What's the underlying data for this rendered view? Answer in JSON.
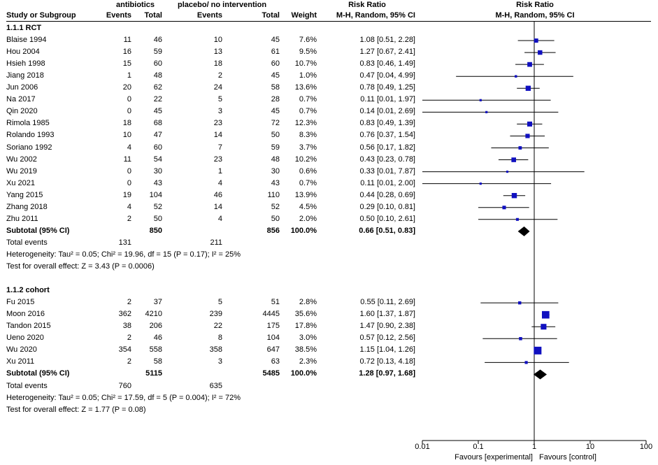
{
  "header": {
    "group1": "antibiotics",
    "group2": "placebo/ no intervention",
    "rr_top": "Risk Ratio",
    "rr_sub": "M-H, Random, 95% CI",
    "plot_top": "Risk Ratio",
    "plot_sub": "M-H, Random, 95% CI",
    "cols": {
      "study": "Study or Subgroup",
      "events1": "Events",
      "total1": "Total",
      "events2": "Events",
      "total2": "Total",
      "weight": "Weight"
    }
  },
  "subgroups": [
    {
      "title": "1.1.1 RCT",
      "studies": [
        {
          "name": "Blaise 1994",
          "e1": "11",
          "t1": "46",
          "e2": "10",
          "t2": "45",
          "w": "7.6%",
          "ci": "1.08 [0.51, 2.28]",
          "rr": 1.08,
          "lo": 0.51,
          "hi": 2.28,
          "wt": 7.6
        },
        {
          "name": "Hou 2004",
          "e1": "16",
          "t1": "59",
          "e2": "13",
          "t2": "61",
          "w": "9.5%",
          "ci": "1.27 [0.67, 2.41]",
          "rr": 1.27,
          "lo": 0.67,
          "hi": 2.41,
          "wt": 9.5
        },
        {
          "name": "Hsieh 1998",
          "e1": "15",
          "t1": "60",
          "e2": "18",
          "t2": "60",
          "w": "10.7%",
          "ci": "0.83 [0.46, 1.49]",
          "rr": 0.83,
          "lo": 0.46,
          "hi": 1.49,
          "wt": 10.7
        },
        {
          "name": "Jiang 2018",
          "e1": "1",
          "t1": "48",
          "e2": "2",
          "t2": "45",
          "w": "1.0%",
          "ci": "0.47 [0.04, 4.99]",
          "rr": 0.47,
          "lo": 0.04,
          "hi": 4.99,
          "wt": 1.0
        },
        {
          "name": "Jun 2006",
          "e1": "20",
          "t1": "62",
          "e2": "24",
          "t2": "58",
          "w": "13.6%",
          "ci": "0.78 [0.49, 1.25]",
          "rr": 0.78,
          "lo": 0.49,
          "hi": 1.25,
          "wt": 13.6
        },
        {
          "name": "Na 2017",
          "e1": "0",
          "t1": "22",
          "e2": "5",
          "t2": "28",
          "w": "0.7%",
          "ci": "0.11 [0.01, 1.97]",
          "rr": 0.11,
          "lo": 0.01,
          "hi": 1.97,
          "wt": 0.7
        },
        {
          "name": "Qin 2020",
          "e1": "0",
          "t1": "45",
          "e2": "3",
          "t2": "45",
          "w": "0.7%",
          "ci": "0.14 [0.01, 2.69]",
          "rr": 0.14,
          "lo": 0.01,
          "hi": 2.69,
          "wt": 0.7
        },
        {
          "name": "Rimola 1985",
          "e1": "18",
          "t1": "68",
          "e2": "23",
          "t2": "72",
          "w": "12.3%",
          "ci": "0.83 [0.49, 1.39]",
          "rr": 0.83,
          "lo": 0.49,
          "hi": 1.39,
          "wt": 12.3
        },
        {
          "name": "Rolando 1993",
          "e1": "10",
          "t1": "47",
          "e2": "14",
          "t2": "50",
          "w": "8.3%",
          "ci": "0.76 [0.37, 1.54]",
          "rr": 0.76,
          "lo": 0.37,
          "hi": 1.54,
          "wt": 8.3
        },
        {
          "name": "Soriano 1992",
          "e1": "4",
          "t1": "60",
          "e2": "7",
          "t2": "59",
          "w": "3.7%",
          "ci": "0.56 [0.17, 1.82]",
          "rr": 0.56,
          "lo": 0.17,
          "hi": 1.82,
          "wt": 3.7
        },
        {
          "name": "Wu 2002",
          "e1": "11",
          "t1": "54",
          "e2": "23",
          "t2": "48",
          "w": "10.2%",
          "ci": "0.43 [0.23, 0.78]",
          "rr": 0.43,
          "lo": 0.23,
          "hi": 0.78,
          "wt": 10.2
        },
        {
          "name": "Wu 2019",
          "e1": "0",
          "t1": "30",
          "e2": "1",
          "t2": "30",
          "w": "0.6%",
          "ci": "0.33 [0.01, 7.87]",
          "rr": 0.33,
          "lo": 0.01,
          "hi": 7.87,
          "wt": 0.6
        },
        {
          "name": "Xu 2021",
          "e1": "0",
          "t1": "43",
          "e2": "4",
          "t2": "43",
          "w": "0.7%",
          "ci": "0.11 [0.01, 2.00]",
          "rr": 0.11,
          "lo": 0.01,
          "hi": 2.0,
          "wt": 0.7
        },
        {
          "name": "Yang 2015",
          "e1": "19",
          "t1": "104",
          "e2": "46",
          "t2": "110",
          "w": "13.9%",
          "ci": "0.44 [0.28, 0.69]",
          "rr": 0.44,
          "lo": 0.28,
          "hi": 0.69,
          "wt": 13.9
        },
        {
          "name": "Zhang 2018",
          "e1": "4",
          "t1": "52",
          "e2": "14",
          "t2": "52",
          "w": "4.5%",
          "ci": "0.29 [0.10, 0.81]",
          "rr": 0.29,
          "lo": 0.1,
          "hi": 0.81,
          "wt": 4.5
        },
        {
          "name": "Zhu 2011",
          "e1": "2",
          "t1": "50",
          "e2": "4",
          "t2": "50",
          "w": "2.0%",
          "ci": "0.50 [0.10, 2.61]",
          "rr": 0.5,
          "lo": 0.1,
          "hi": 2.61,
          "wt": 2.0
        }
      ],
      "subtotal": {
        "label": "Subtotal (95% CI)",
        "t1": "850",
        "t2": "856",
        "w": "100.0%",
        "ci": "0.66 [0.51, 0.83]",
        "rr": 0.66,
        "lo": 0.51,
        "hi": 0.83
      },
      "total_events": {
        "label": "Total events",
        "e1": "131",
        "e2": "211"
      },
      "heterogeneity": "Heterogeneity: Tau² = 0.05; Chi² = 19.96, df = 15 (P = 0.17); I² = 25%",
      "overall": "Test for overall effect: Z = 3.43 (P = 0.0006)"
    },
    {
      "title": "1.1.2 cohort",
      "studies": [
        {
          "name": "Fu 2015",
          "e1": "2",
          "t1": "37",
          "e2": "5",
          "t2": "51",
          "w": "2.8%",
          "ci": "0.55 [0.11, 2.69]",
          "rr": 0.55,
          "lo": 0.11,
          "hi": 2.69,
          "wt": 2.8
        },
        {
          "name": "Moon 2016",
          "e1": "362",
          "t1": "4210",
          "e2": "239",
          "t2": "4445",
          "w": "35.6%",
          "ci": "1.60 [1.37, 1.87]",
          "rr": 1.6,
          "lo": 1.37,
          "hi": 1.87,
          "wt": 35.6
        },
        {
          "name": "Tandon 2015",
          "e1": "38",
          "t1": "206",
          "e2": "22",
          "t2": "175",
          "w": "17.8%",
          "ci": "1.47 [0.90, 2.38]",
          "rr": 1.47,
          "lo": 0.9,
          "hi": 2.38,
          "wt": 17.8
        },
        {
          "name": "Ueno 2020",
          "e1": "2",
          "t1": "46",
          "e2": "8",
          "t2": "104",
          "w": "3.0%",
          "ci": "0.57 [0.12, 2.56]",
          "rr": 0.57,
          "lo": 0.12,
          "hi": 2.56,
          "wt": 3.0
        },
        {
          "name": "Wu 2020",
          "e1": "354",
          "t1": "558",
          "e2": "358",
          "t2": "647",
          "w": "38.5%",
          "ci": "1.15 [1.04, 1.26]",
          "rr": 1.15,
          "lo": 1.04,
          "hi": 1.26,
          "wt": 38.5
        },
        {
          "name": "Xu 2011",
          "e1": "2",
          "t1": "58",
          "e2": "3",
          "t2": "63",
          "w": "2.3%",
          "ci": "0.72 [0.13, 4.18]",
          "rr": 0.72,
          "lo": 0.13,
          "hi": 4.18,
          "wt": 2.3
        }
      ],
      "subtotal": {
        "label": "Subtotal (95% CI)",
        "t1": "5115",
        "t2": "5485",
        "w": "100.0%",
        "ci": "1.28 [0.97, 1.68]",
        "rr": 1.28,
        "lo": 0.97,
        "hi": 1.68
      },
      "total_events": {
        "label": "Total events",
        "e1": "760",
        "e2": "635"
      },
      "heterogeneity": "Heterogeneity: Tau² = 0.05; Chi² = 17.59, df = 5 (P = 0.004); I² = 72%",
      "overall": "Test for overall effect: Z = 1.77 (P = 0.08)"
    }
  ],
  "axis": {
    "ticks": [
      "0.01",
      "0.1",
      "1",
      "10",
      "100"
    ],
    "favours_left": "Favours [experimental]",
    "favours_right": "Favours [control]"
  },
  "colors": {
    "marker": "#1010c0",
    "line": "#000000",
    "diamond": "#000000"
  },
  "chart_data": {
    "type": "forest",
    "scale": "log",
    "xlim": [
      0.01,
      100
    ],
    "xticks": [
      0.01,
      0.1,
      1,
      10,
      100
    ],
    "reference_line": 1,
    "xlabel_left": "Favours [experimental]",
    "xlabel_right": "Favours [control]",
    "title": "Risk Ratio M-H, Random, 95% CI"
  }
}
